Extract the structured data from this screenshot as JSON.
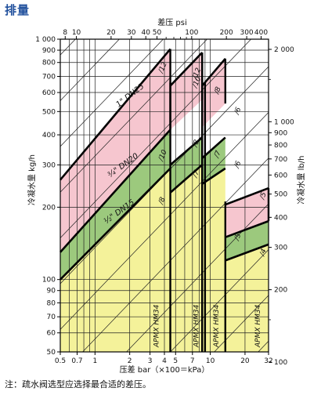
{
  "heading": "排量",
  "footnote": "注：疏水阀选型应选择最合适的差压。",
  "colors": {
    "pink": "#f6c6cf",
    "green": "#9cc97d",
    "yellow": "#f4f29a",
    "line": "#111111",
    "heading": "#1f4f9c"
  },
  "chart_data": {
    "type": "line",
    "x_scale": "log",
    "y_scale": "log",
    "xlabel": "压差 bar（×100＝kPa）",
    "ylabel_left": "冷凝水量 kg/h",
    "ylabel_right": "冷凝水量 lb/h",
    "top_axis_label": "差压 psi",
    "xlim": [
      0.5,
      32
    ],
    "ylim": [
      50,
      1000
    ],
    "x_ticks": [
      {
        "v": 0.5,
        "label": "0.5"
      },
      {
        "v": 0.7,
        "label": "0.7"
      },
      {
        "v": 1,
        "label": "1"
      },
      {
        "v": 2,
        "label": "2"
      },
      {
        "v": 3,
        "label": "3"
      },
      {
        "v": 4,
        "label": "4"
      },
      {
        "v": 5,
        "label": "5"
      },
      {
        "v": 7,
        "label": "7"
      },
      {
        "v": 10,
        "label": "10"
      },
      {
        "v": 20,
        "label": "20"
      },
      {
        "v": 32,
        "label": "32"
      }
    ],
    "x_minor": [
      0.6,
      0.8,
      0.9,
      6,
      8,
      9
    ],
    "y_ticks_left": [
      {
        "v": 1000,
        "label": "1 000"
      },
      {
        "v": 900,
        "label": "900"
      },
      {
        "v": 800,
        "label": "800"
      },
      {
        "v": 700,
        "label": "700"
      },
      {
        "v": 600,
        "label": "600"
      },
      {
        "v": 500,
        "label": "500"
      },
      {
        "v": 400,
        "label": "400"
      },
      {
        "v": 300,
        "label": "300"
      },
      {
        "v": 200,
        "label": "200"
      },
      {
        "v": 100,
        "label": "100"
      },
      {
        "v": 90,
        "label": "90"
      },
      {
        "v": 80,
        "label": "80"
      },
      {
        "v": 70,
        "label": "70"
      },
      {
        "v": 60,
        "label": "60"
      },
      {
        "v": 50,
        "label": "50"
      }
    ],
    "x_top_ticks_psi": [
      {
        "v": 8,
        "label": "8"
      },
      {
        "v": 10,
        "label": "10"
      },
      {
        "v": 20,
        "label": "20"
      },
      {
        "v": 30,
        "label": "30"
      },
      {
        "v": 40,
        "label": "40"
      },
      {
        "v": 50,
        "label": "50"
      },
      {
        "v": 100,
        "label": "100"
      },
      {
        "v": 200,
        "label": "200"
      },
      {
        "v": 300,
        "label": "300"
      },
      {
        "v": 400,
        "label": "400"
      }
    ],
    "x_top_minor_psi": [
      60,
      70,
      80,
      90
    ],
    "y_ticks_right_lb": [
      {
        "v": 2000,
        "label": "2 000"
      },
      {
        "v": 1000,
        "label": "1 000"
      },
      {
        "v": 900,
        "label": "900"
      },
      {
        "v": 800,
        "label": "800"
      },
      {
        "v": 700,
        "label": "700"
      },
      {
        "v": 600,
        "label": "600"
      },
      {
        "v": 500,
        "label": "500"
      },
      {
        "v": 400,
        "label": "400"
      },
      {
        "v": 300,
        "label": "300"
      },
      {
        "v": 200,
        "label": "200"
      },
      {
        "v": 100,
        "label": "100"
      }
    ],
    "y_right_minor_lb": [
      1500,
      150
    ],
    "ranges": [
      {
        "label": "APMX HM34",
        "x": [
          0.5,
          4.5
        ]
      },
      {
        "label": "APMX HM34",
        "x": [
          4.5,
          8.5
        ]
      },
      {
        "label": "APMX HM34",
        "x": [
          9.0,
          13.5
        ]
      },
      {
        "label": "APMX HM34",
        "x": [
          13.5,
          32
        ]
      }
    ],
    "bands": [
      {
        "name": "1\" DN25",
        "color_key": "pink",
        "segments": [
          {
            "x": [
              0.5,
              4.5
            ],
            "top": [
              260,
              910
            ],
            "bottom": [
              130,
              420
            ]
          },
          {
            "x": [
              4.5,
              8.5
            ],
            "top": [
              640,
              880
            ],
            "bottom": [
              420,
              560
            ]
          },
          {
            "x": [
              8.5,
              13.5
            ],
            "top": [
              640,
              830
            ],
            "bottom": [
              430,
              540
            ]
          },
          {
            "x": [
              13.5,
              32
            ],
            "top": [
              205,
              240
            ],
            "bottom": [
              150,
              175
            ]
          }
        ]
      },
      {
        "name": "¾\" DN20",
        "color_key": "green",
        "segments": [
          {
            "x": [
              0.5,
              4.5
            ],
            "top": [
              130,
              420
            ],
            "bottom": [
              100,
              290
            ]
          },
          {
            "x": [
              4.5,
              8.5
            ],
            "top": [
              300,
              390
            ],
            "bottom": [
              230,
              300
            ]
          },
          {
            "x": [
              8.5,
              13.5
            ],
            "top": [
              320,
              390
            ],
            "bottom": [
              250,
              290
            ]
          },
          {
            "x": [
              13.5,
              32
            ],
            "top": [
              150,
              175
            ],
            "bottom": [
              120,
              140
            ]
          }
        ]
      },
      {
        "name": "½\" DN15",
        "color_key": "yellow",
        "segments": [
          {
            "x": [
              0.5,
              4.5
            ],
            "top": [
              100,
              290
            ],
            "bottom": [
              50,
              50
            ]
          },
          {
            "x": [
              4.5,
              8.5
            ],
            "top": [
              230,
              300
            ],
            "bottom": [
              50,
              50
            ]
          },
          {
            "x": [
              8.5,
              13.5
            ],
            "top": [
              250,
              290
            ],
            "bottom": [
              50,
              50
            ]
          },
          {
            "x": [
              13.5,
              32
            ],
            "top": [
              120,
              140
            ],
            "bottom": [
              50,
              50
            ]
          }
        ]
      }
    ],
    "orifice_labels": [
      {
        "text": "/12",
        "x": 3.85,
        "y": 720
      },
      {
        "text": "/10",
        "x": 3.85,
        "y": 310
      },
      {
        "text": "/8",
        "x": 3.85,
        "y": 205
      },
      {
        "text": "/12",
        "x": 7.6,
        "y": 680
      },
      {
        "text": "/10",
        "x": 7.6,
        "y": 625
      },
      {
        "text": "/8",
        "x": 7.6,
        "y": 355
      },
      {
        "text": "/7",
        "x": 7.6,
        "y": 265
      },
      {
        "text": "/8",
        "x": 11.7,
        "y": 590
      },
      {
        "text": "/7",
        "x": 11.7,
        "y": 320
      },
      {
        "text": "/6",
        "x": 17.5,
        "y": 485
      },
      {
        "text": "/6",
        "x": 17.5,
        "y": 290
      },
      {
        "text": "/5",
        "x": 17.5,
        "y": 145
      },
      {
        "text": "/5",
        "x": 29,
        "y": 215
      },
      {
        "text": "/4",
        "x": 29,
        "y": 125
      }
    ]
  }
}
